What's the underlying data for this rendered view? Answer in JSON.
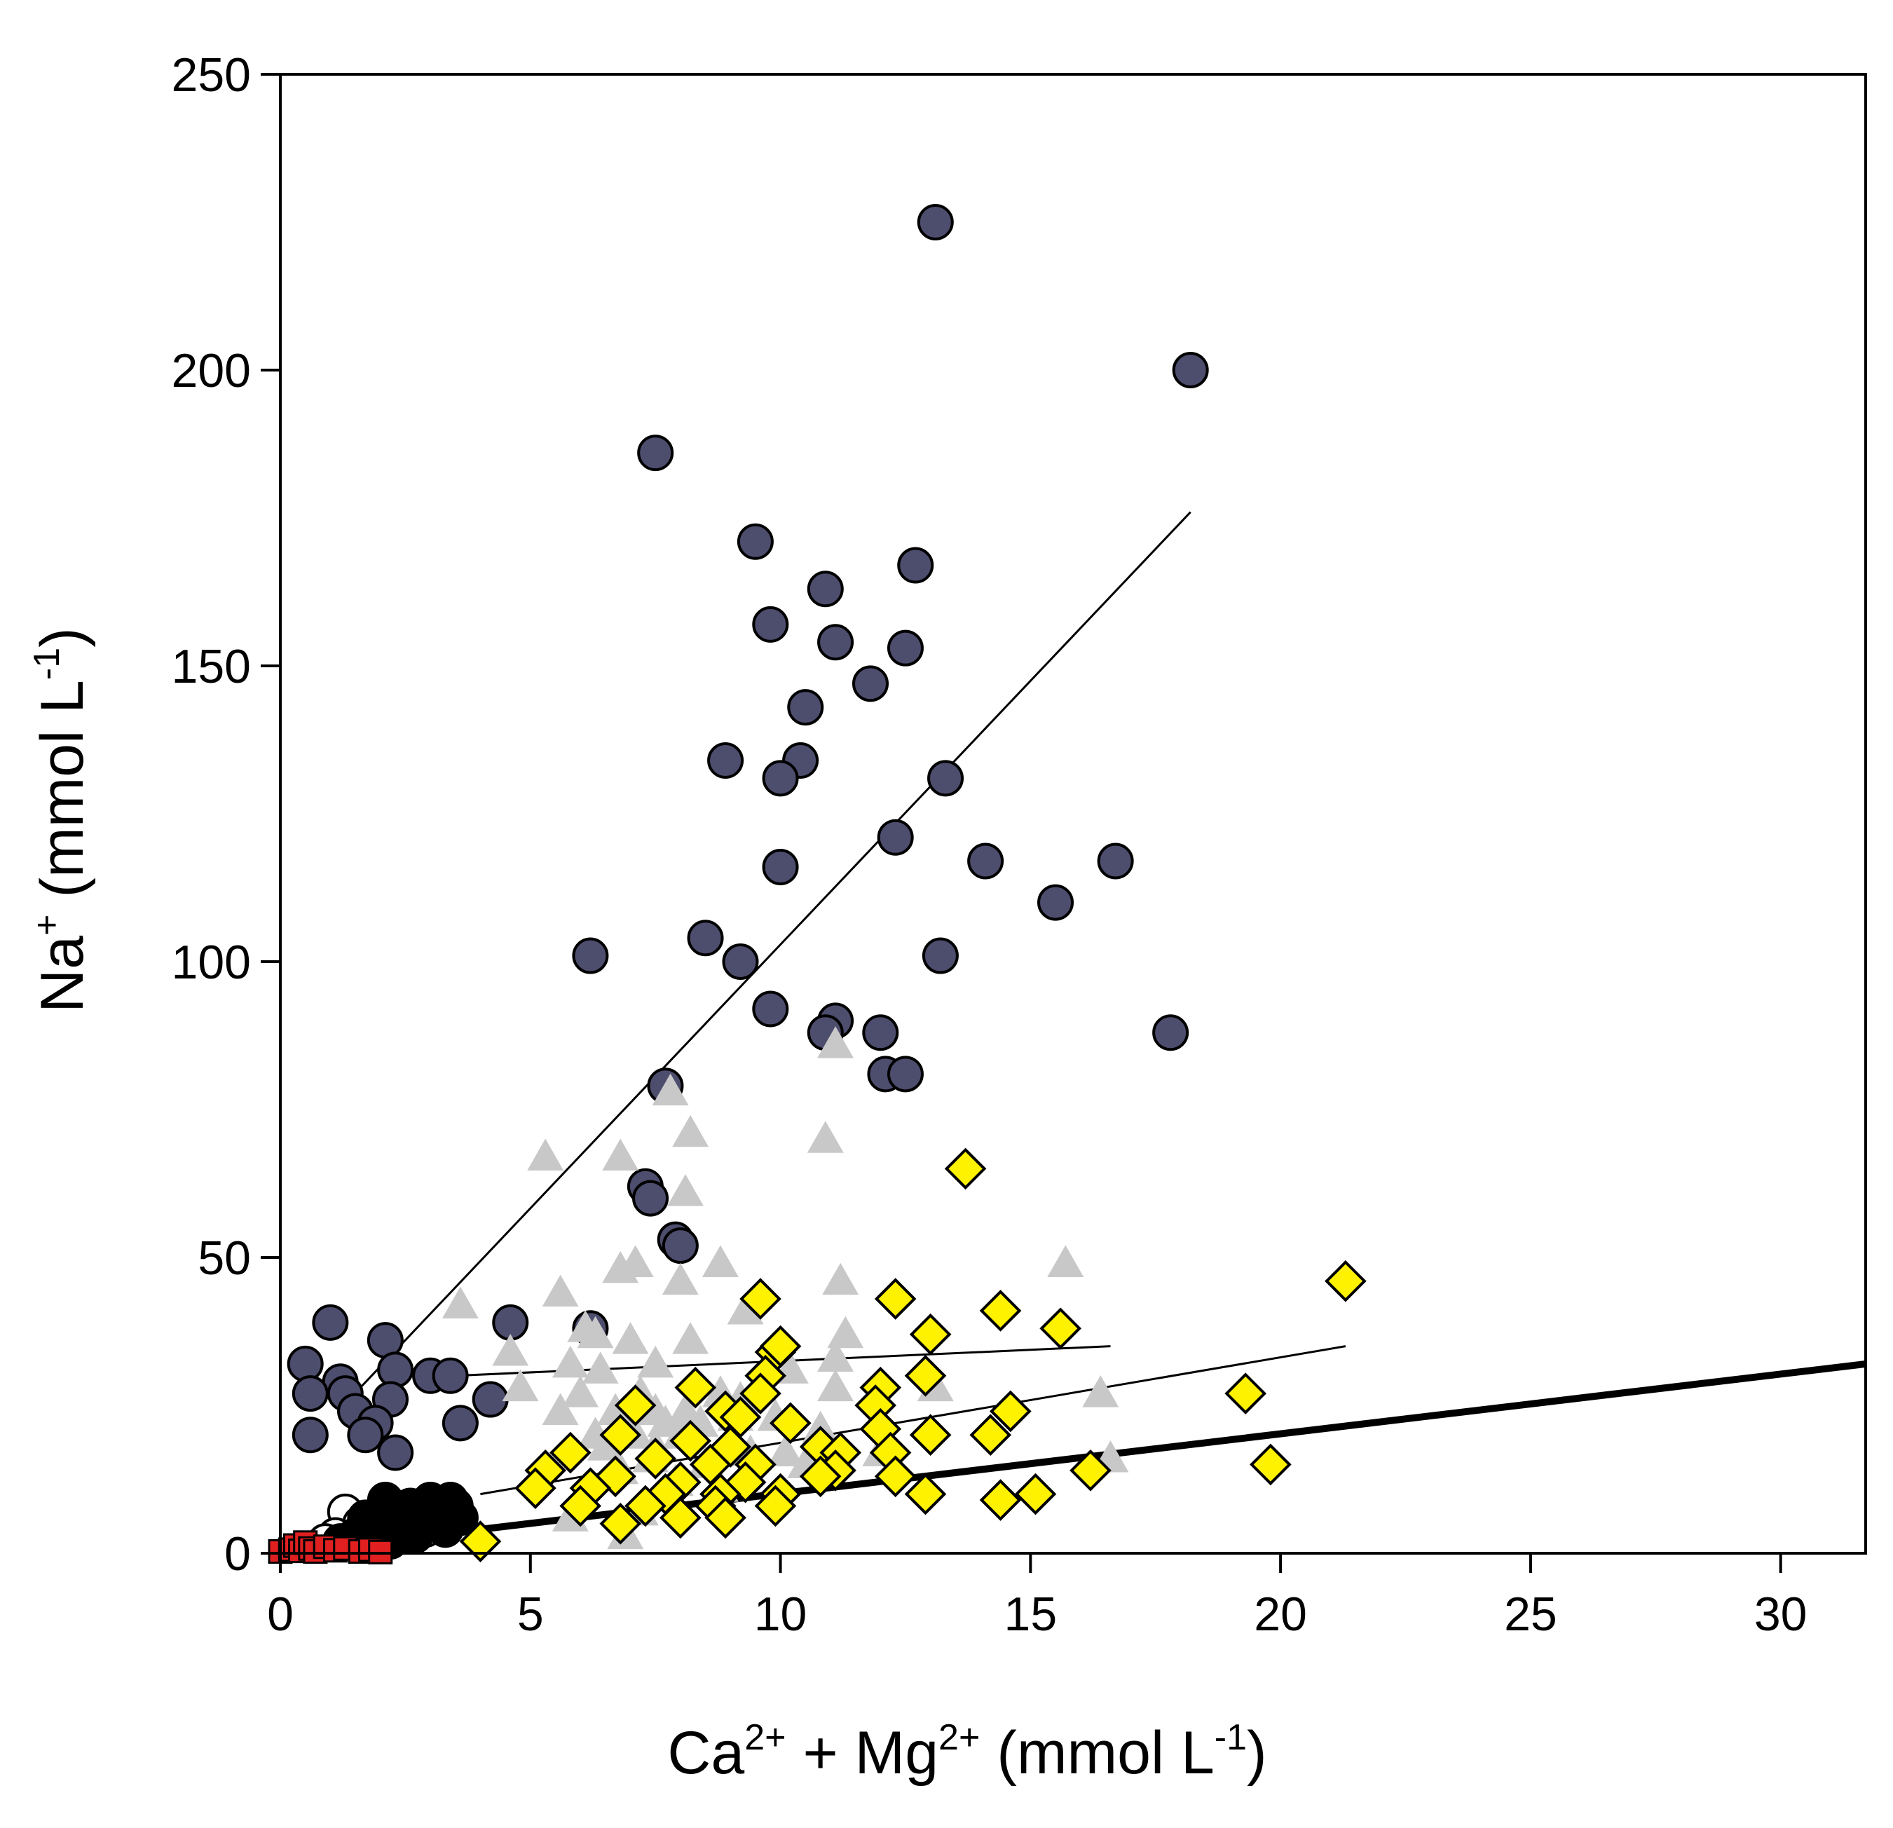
{
  "chart_data": {
    "type": "scatter",
    "title": "",
    "xlabel": {
      "parts": [
        "Ca",
        "2+",
        " + Mg",
        "2+",
        " (mmol L",
        "-1",
        ")"
      ],
      "sup": [
        false,
        true,
        false,
        true,
        false,
        true,
        false
      ]
    },
    "ylabel": {
      "parts": [
        "Na",
        "+",
        " (mmol L",
        "-1",
        ")"
      ],
      "sup": [
        false,
        true,
        false,
        true,
        false
      ]
    },
    "xlim": [
      0,
      31.7
    ],
    "ylim": [
      0,
      250
    ],
    "xticks": [
      0,
      5,
      10,
      15,
      20,
      25,
      30
    ],
    "yticks": [
      0,
      50,
      100,
      150,
      200,
      250
    ],
    "xtick_labels": [
      "0",
      "5",
      "10",
      "15",
      "20",
      "25",
      "30"
    ],
    "ytick_labels": [
      "0",
      "50",
      "100",
      "150",
      "200",
      "250"
    ],
    "grid": false,
    "legend": null,
    "colors": {
      "navy": "#4d4d6e",
      "yellow": "#fff200",
      "gray": "#c8c8c8",
      "red": "#e02020",
      "black": "#000000",
      "white": "#ffffff"
    },
    "series": [
      {
        "name": "dark circles",
        "marker": "circle",
        "fill": "#4d4d6e",
        "stroke": "#000000",
        "points": [
          [
            13.1,
            225
          ],
          [
            18.2,
            200
          ],
          [
            7.5,
            186
          ],
          [
            9.5,
            171
          ],
          [
            10.9,
            163
          ],
          [
            12.7,
            167
          ],
          [
            9.8,
            157
          ],
          [
            11.1,
            154
          ],
          [
            12.5,
            153
          ],
          [
            11.8,
            147
          ],
          [
            10.5,
            143
          ],
          [
            8.9,
            134
          ],
          [
            10.4,
            134
          ],
          [
            10,
            131
          ],
          [
            13.3,
            131
          ],
          [
            12.3,
            121
          ],
          [
            10,
            116
          ],
          [
            14.1,
            117
          ],
          [
            16.7,
            117
          ],
          [
            15.5,
            110
          ],
          [
            8.5,
            104
          ],
          [
            6.2,
            101
          ],
          [
            9.2,
            100
          ],
          [
            13.2,
            101
          ],
          [
            9.8,
            92
          ],
          [
            11.1,
            90
          ],
          [
            10.9,
            88
          ],
          [
            12,
            88
          ],
          [
            17.8,
            88
          ],
          [
            12.1,
            81
          ],
          [
            12.5,
            81
          ],
          [
            7.7,
            79
          ],
          [
            7.3,
            62
          ],
          [
            7.4,
            60
          ],
          [
            7.9,
            53
          ],
          [
            8,
            52
          ],
          [
            1,
            39
          ],
          [
            4.6,
            39
          ],
          [
            6.2,
            38
          ],
          [
            2.1,
            36
          ],
          [
            0.5,
            32
          ],
          [
            2.3,
            31
          ],
          [
            3,
            30
          ],
          [
            3.4,
            30
          ],
          [
            1.2,
            29
          ],
          [
            0.6,
            27
          ],
          [
            1.3,
            27
          ],
          [
            2.2,
            26
          ],
          [
            4.2,
            26
          ],
          [
            1.5,
            24
          ],
          [
            1.9,
            22
          ],
          [
            3.6,
            22
          ],
          [
            1.7,
            20
          ],
          [
            0.6,
            20
          ],
          [
            2.3,
            17
          ]
        ]
      },
      {
        "name": "gray triangles",
        "marker": "triangle",
        "fill": "#c8c8c8",
        "stroke": "none",
        "points": [
          [
            11.1,
            86
          ],
          [
            7.8,
            78
          ],
          [
            8.2,
            71
          ],
          [
            10.9,
            70
          ],
          [
            5.3,
            67
          ],
          [
            6.8,
            67
          ],
          [
            8.1,
            61
          ],
          [
            15.7,
            49
          ],
          [
            6.8,
            48
          ],
          [
            7.1,
            49
          ],
          [
            8.8,
            49
          ],
          [
            11.2,
            46
          ],
          [
            8,
            46
          ],
          [
            5.6,
            44
          ],
          [
            3.6,
            42
          ],
          [
            9.3,
            41
          ],
          [
            6.1,
            38
          ],
          [
            6.3,
            37
          ],
          [
            11.3,
            37
          ],
          [
            7,
            36
          ],
          [
            8.2,
            36
          ],
          [
            4.6,
            34
          ],
          [
            11.1,
            33
          ],
          [
            5.8,
            32
          ],
          [
            6.4,
            31
          ],
          [
            7.5,
            32
          ],
          [
            10.2,
            31
          ],
          [
            13.1,
            28
          ],
          [
            4.8,
            28
          ],
          [
            6,
            27
          ],
          [
            7.2,
            27
          ],
          [
            8.8,
            27
          ],
          [
            9.2,
            26
          ],
          [
            11.1,
            28
          ],
          [
            16.4,
            27
          ],
          [
            6.7,
            24
          ],
          [
            7.5,
            24
          ],
          [
            8.1,
            24
          ],
          [
            9.1,
            23
          ],
          [
            9.9,
            23
          ],
          [
            5.6,
            24
          ],
          [
            6.9,
            22
          ],
          [
            7.7,
            22
          ],
          [
            8.4,
            22
          ],
          [
            10.8,
            21
          ],
          [
            6.3,
            20
          ],
          [
            7.1,
            20
          ],
          [
            8,
            20
          ],
          [
            6.5,
            18
          ],
          [
            7.5,
            18
          ],
          [
            9.4,
            17
          ],
          [
            10.1,
            17
          ],
          [
            7.4,
            16
          ],
          [
            8.5,
            15
          ],
          [
            10.5,
            15
          ],
          [
            12,
            17
          ],
          [
            16.6,
            16
          ],
          [
            6.8,
            14
          ],
          [
            7.9,
            12
          ],
          [
            8.8,
            11
          ],
          [
            5.8,
            6
          ],
          [
            7.2,
            7
          ],
          [
            6.9,
            3
          ]
        ]
      },
      {
        "name": "yellow diamonds",
        "marker": "diamond",
        "fill": "#fff200",
        "stroke": "#000000",
        "points": [
          [
            13.7,
            65
          ],
          [
            21.3,
            46
          ],
          [
            9.6,
            43
          ],
          [
            12.3,
            43
          ],
          [
            14.4,
            41
          ],
          [
            15.6,
            38
          ],
          [
            13,
            37
          ],
          [
            9.9,
            34
          ],
          [
            10,
            35
          ],
          [
            12.9,
            30
          ],
          [
            9.7,
            30
          ],
          [
            12,
            28
          ],
          [
            8.3,
            28
          ],
          [
            9.6,
            27
          ],
          [
            19.3,
            27
          ],
          [
            11.9,
            25
          ],
          [
            7.1,
            25
          ],
          [
            8.9,
            24
          ],
          [
            14.6,
            24
          ],
          [
            9.2,
            23
          ],
          [
            10.2,
            22
          ],
          [
            12,
            21
          ],
          [
            13,
            20
          ],
          [
            14.2,
            20
          ],
          [
            6.8,
            20
          ],
          [
            8.2,
            19
          ],
          [
            9,
            18
          ],
          [
            10.8,
            18
          ],
          [
            11.2,
            17
          ],
          [
            12.2,
            17
          ],
          [
            5.8,
            17
          ],
          [
            7.5,
            16
          ],
          [
            8.6,
            15
          ],
          [
            9.5,
            15
          ],
          [
            11.1,
            14
          ],
          [
            19.8,
            15
          ],
          [
            5.3,
            14
          ],
          [
            6.7,
            13
          ],
          [
            8,
            12
          ],
          [
            9.3,
            12
          ],
          [
            10.8,
            13
          ],
          [
            12.3,
            13
          ],
          [
            16.2,
            14
          ],
          [
            5.1,
            11
          ],
          [
            6.2,
            11
          ],
          [
            7.7,
            10
          ],
          [
            8.8,
            10
          ],
          [
            10,
            10
          ],
          [
            12.9,
            10
          ],
          [
            15.1,
            10
          ],
          [
            6,
            8
          ],
          [
            7.3,
            8
          ],
          [
            8.7,
            8
          ],
          [
            9.9,
            8
          ],
          [
            14.4,
            9
          ],
          [
            8,
            6
          ],
          [
            8.9,
            6
          ],
          [
            6.8,
            5
          ],
          [
            4,
            2
          ]
        ]
      },
      {
        "name": "open circles",
        "marker": "circle",
        "fill": "#ffffff",
        "stroke": "#000000",
        "points": [
          [
            1.3,
            7
          ],
          [
            1.6,
            5
          ],
          [
            1.9,
            4
          ],
          [
            2.2,
            5
          ],
          [
            2.5,
            3
          ],
          [
            2.9,
            4
          ],
          [
            3.1,
            6
          ],
          [
            3.3,
            5
          ],
          [
            1.1,
            3
          ],
          [
            0.9,
            2
          ]
        ]
      },
      {
        "name": "black circles",
        "marker": "circle",
        "fill": "#000000",
        "stroke": "#000000",
        "points": [
          [
            2.1,
            9
          ],
          [
            2.6,
            8
          ],
          [
            3.0,
            9
          ],
          [
            3.4,
            9
          ],
          [
            1.7,
            6
          ],
          [
            2.3,
            6
          ],
          [
            2.8,
            7
          ],
          [
            3.2,
            7
          ],
          [
            3.5,
            8
          ],
          [
            2.0,
            4
          ],
          [
            2.5,
            5
          ],
          [
            3.0,
            5
          ],
          [
            1.5,
            3
          ],
          [
            2.2,
            2
          ],
          [
            2.7,
            3
          ],
          [
            3.3,
            4
          ],
          [
            1.8,
            2
          ],
          [
            2.4,
            3
          ],
          [
            1.2,
            2
          ],
          [
            3.6,
            6
          ]
        ]
      },
      {
        "name": "red squares",
        "marker": "square",
        "fill": "#e02020",
        "stroke": "#000000",
        "points": [
          [
            0,
            0.3
          ],
          [
            0.2,
            0.6
          ],
          [
            0.3,
            1.3
          ],
          [
            0.4,
            0.4
          ],
          [
            0.5,
            1.8
          ],
          [
            0.6,
            0.8
          ],
          [
            0.7,
            0.3
          ],
          [
            0.9,
            1.1
          ],
          [
            1.1,
            0.5
          ],
          [
            1.3,
            0.8
          ],
          [
            1.6,
            0.3
          ],
          [
            1.8,
            0.6
          ],
          [
            2.0,
            0.2
          ]
        ]
      }
    ],
    "lines": [
      {
        "name": "fit dark circles",
        "from": [
          1.6,
          28
        ],
        "to": [
          18.2,
          176
        ],
        "stroke": "#000000",
        "width": 3
      },
      {
        "name": "fit gray triangles",
        "from": [
          3.5,
          30
        ],
        "to": [
          16.6,
          35
        ],
        "stroke": "#000000",
        "width": 3
      },
      {
        "name": "fit yellow diamonds",
        "from": [
          4,
          10
        ],
        "to": [
          21.3,
          35
        ],
        "stroke": "#000000",
        "width": 3
      },
      {
        "name": "fit all data",
        "from": [
          0,
          0
        ],
        "to": [
          31.7,
          32
        ],
        "stroke": "#000000",
        "width": 10
      }
    ]
  }
}
